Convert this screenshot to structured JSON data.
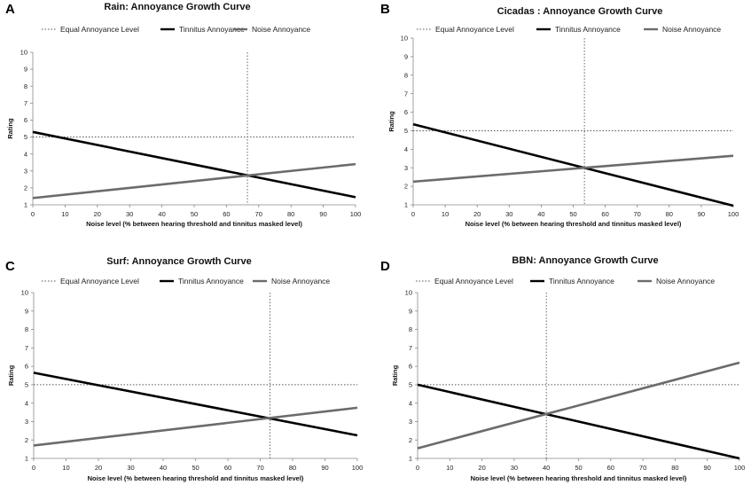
{
  "legend_labels": [
    "Equal Annoyance Level",
    "Tinnitus Annoyance",
    "Noise Annoyance"
  ],
  "series_styles": {
    "equal": {
      "color": "#555555",
      "dashed": true
    },
    "tinnitus": {
      "color": "#000000",
      "dashed": false
    },
    "noise": {
      "color": "#6b6b6b",
      "dashed": false
    }
  },
  "chart_data": [
    {
      "panel": "A",
      "type": "line",
      "title": "Rain: Annoyance Growth Curve",
      "xlabel": "Noise level (% between hearing threshold and tinnitus masked level)",
      "ylabel": "Rating",
      "xlim": [
        0,
        100
      ],
      "ylim": [
        1,
        10
      ],
      "xticks": [
        0,
        10,
        20,
        30,
        40,
        50,
        60,
        70,
        80,
        90,
        100
      ],
      "yticks": [
        1,
        2,
        3,
        4,
        5,
        6,
        7,
        8,
        9,
        10
      ],
      "series": [
        {
          "name": "Equal Annoyance Level",
          "x": [
            0,
            100
          ],
          "y": [
            5,
            5
          ]
        },
        {
          "name": "Tinnitus Annoyance",
          "x": [
            0,
            100
          ],
          "y": [
            5.3,
            1.45
          ]
        },
        {
          "name": "Noise Annoyance",
          "x": [
            0,
            100
          ],
          "y": [
            1.4,
            3.4
          ]
        }
      ],
      "intersection_x": 66.5
    },
    {
      "panel": "B",
      "type": "line",
      "title": "Cicadas : Annoyance Growth Curve",
      "xlabel": "Noise level (% between hearing threshold and tinnitus masked level)",
      "ylabel": "Rating",
      "xlim": [
        0,
        100
      ],
      "ylim": [
        1,
        10
      ],
      "xticks": [
        0,
        10,
        20,
        30,
        40,
        50,
        60,
        70,
        80,
        90,
        100
      ],
      "yticks": [
        1,
        2,
        3,
        4,
        5,
        6,
        7,
        8,
        9,
        10
      ],
      "series": [
        {
          "name": "Equal Annoyance Level",
          "x": [
            0,
            100
          ],
          "y": [
            5,
            5
          ]
        },
        {
          "name": "Tinnitus Annoyance",
          "x": [
            0,
            100
          ],
          "y": [
            5.35,
            0.95
          ]
        },
        {
          "name": "Noise Annoyance",
          "x": [
            0,
            100
          ],
          "y": [
            2.25,
            3.65
          ]
        }
      ],
      "intersection_x": 53.5
    },
    {
      "panel": "C",
      "type": "line",
      "title": "Surf: Annoyance Growth Curve",
      "xlabel": "Noise level (% between hearing threshold and tinnitus masked level)",
      "ylabel": "Rating",
      "xlim": [
        0,
        100
      ],
      "ylim": [
        1,
        10
      ],
      "xticks": [
        0,
        10,
        20,
        30,
        40,
        50,
        60,
        70,
        80,
        90,
        100
      ],
      "yticks": [
        1,
        2,
        3,
        4,
        5,
        6,
        7,
        8,
        9,
        10
      ],
      "series": [
        {
          "name": "Equal Annoyance Level",
          "x": [
            0,
            100
          ],
          "y": [
            5,
            5
          ]
        },
        {
          "name": "Tinnitus Annoyance",
          "x": [
            0,
            100
          ],
          "y": [
            5.65,
            2.25
          ]
        },
        {
          "name": "Noise Annoyance",
          "x": [
            0,
            100
          ],
          "y": [
            1.7,
            3.75
          ]
        }
      ],
      "intersection_x": 73
    },
    {
      "panel": "D",
      "type": "line",
      "title": "BBN: Annoyance Growth Curve",
      "xlabel": "Noise level (% between hearing threshold and tinnitus masked level)",
      "ylabel": "Rating",
      "xlim": [
        0,
        100
      ],
      "ylim": [
        1,
        10
      ],
      "xticks": [
        0,
        10,
        20,
        30,
        40,
        50,
        60,
        70,
        80,
        90,
        100
      ],
      "yticks": [
        1,
        2,
        3,
        4,
        5,
        6,
        7,
        8,
        9,
        10
      ],
      "series": [
        {
          "name": "Equal Annoyance Level",
          "x": [
            0,
            100
          ],
          "y": [
            5,
            5
          ]
        },
        {
          "name": "Tinnitus Annoyance",
          "x": [
            0,
            100
          ],
          "y": [
            5.0,
            1.0
          ]
        },
        {
          "name": "Noise Annoyance",
          "x": [
            0,
            100
          ],
          "y": [
            1.55,
            6.2
          ]
        }
      ],
      "intersection_x": 40
    }
  ]
}
